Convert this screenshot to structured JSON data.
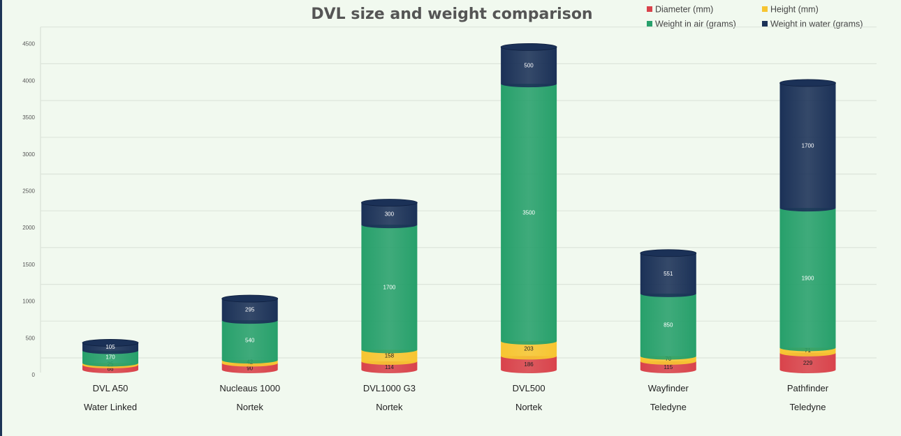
{
  "chart_data": {
    "type": "bar",
    "stacked": true,
    "style": "3d-cylinder",
    "title": "DVL size and weight comparison",
    "categories": [
      "DVL A50",
      "Nucleaus 1000",
      "DVL1000 G3",
      "DVL500",
      "Wayfinder",
      "Pathfinder"
    ],
    "manufacturers": [
      "Water Linked",
      "Nortek",
      "Nortek",
      "Nortek",
      "Teledyne",
      "Teledyne"
    ],
    "series": [
      {
        "name": "Diameter (mm)",
        "color": "#d9434b",
        "values": [
          66,
          90,
          114,
          186,
          115,
          229
        ]
      },
      {
        "name": "Height (mm)",
        "color": "#f7c531",
        "values": [
          25,
          42,
          158,
          203,
          70,
          71
        ]
      },
      {
        "name": "Weight in air (grams)",
        "color": "#27a06b",
        "values": [
          170,
          540,
          1700,
          3500,
          850,
          1900
        ]
      },
      {
        "name": "Weight in water (grams)",
        "color": "#1b3157",
        "values": [
          105,
          295,
          300,
          500,
          551,
          1700
        ]
      }
    ],
    "yticks": [
      0,
      500,
      1000,
      1500,
      2000,
      2500,
      3000,
      3500,
      4000,
      4500
    ],
    "ylim": [
      0,
      4500
    ],
    "grid": true,
    "legend": "top-right"
  }
}
